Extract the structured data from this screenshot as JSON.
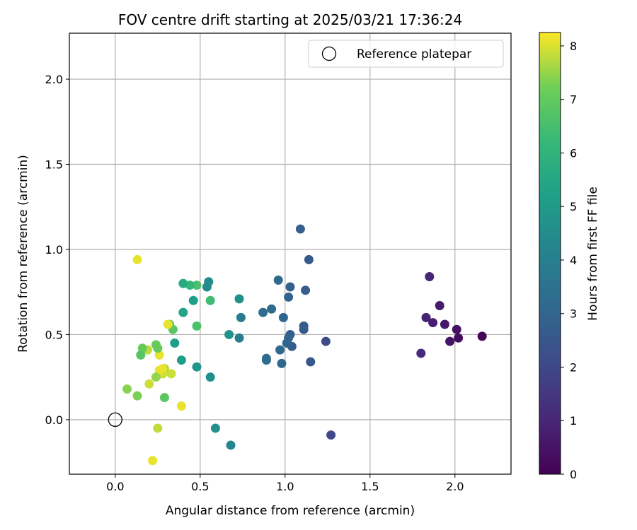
{
  "chart_data": {
    "type": "scatter",
    "title": "FOV centre drift starting at 2025/03/21 17:36:24",
    "xlabel": "Angular distance from reference (arcmin)",
    "ylabel": "Rotation from reference (arcmin)",
    "xlim": [
      -0.27,
      2.33
    ],
    "ylim": [
      -0.32,
      2.27
    ],
    "x_ticks": [
      0.0,
      0.5,
      1.0,
      1.5,
      2.0
    ],
    "x_tick_labels": [
      "0.0",
      "0.5",
      "1.0",
      "1.5",
      "2.0"
    ],
    "y_ticks": [
      0.0,
      0.5,
      1.0,
      1.5,
      2.0
    ],
    "y_tick_labels": [
      "0.0",
      "0.5",
      "1.0",
      "1.5",
      "2.0"
    ],
    "grid": true,
    "colormap": "viridis",
    "colorbar": {
      "label": "Hours from first FF file",
      "range": [
        0,
        8.25
      ],
      "ticks": [
        0,
        1,
        2,
        3,
        4,
        5,
        6,
        7,
        8
      ],
      "tick_labels": [
        "0",
        "1",
        "2",
        "3",
        "4",
        "5",
        "6",
        "7",
        "8"
      ]
    },
    "legend": {
      "placement": "top-right",
      "entries": [
        {
          "label": "Reference platepar",
          "marker": "open-circle"
        }
      ]
    },
    "reference_point": {
      "x": 0.0,
      "y": 0.0
    },
    "points": [
      {
        "x": 2.16,
        "y": 0.49,
        "c": 0.1
      },
      {
        "x": 2.02,
        "y": 0.48,
        "c": 0.3
      },
      {
        "x": 2.01,
        "y": 0.53,
        "c": 0.4
      },
      {
        "x": 1.97,
        "y": 0.46,
        "c": 0.5
      },
      {
        "x": 1.94,
        "y": 0.56,
        "c": 0.6
      },
      {
        "x": 1.91,
        "y": 0.67,
        "c": 0.7
      },
      {
        "x": 1.87,
        "y": 0.57,
        "c": 0.8
      },
      {
        "x": 1.83,
        "y": 0.6,
        "c": 0.9
      },
      {
        "x": 1.85,
        "y": 0.84,
        "c": 1.0
      },
      {
        "x": 1.8,
        "y": 0.39,
        "c": 1.1
      },
      {
        "x": 1.27,
        "y": -0.09,
        "c": 2.0
      },
      {
        "x": 1.24,
        "y": 0.46,
        "c": 2.1
      },
      {
        "x": 1.15,
        "y": 0.34,
        "c": 2.5
      },
      {
        "x": 1.14,
        "y": 0.94,
        "c": 2.6
      },
      {
        "x": 1.11,
        "y": 0.53,
        "c": 2.6
      },
      {
        "x": 1.11,
        "y": 0.55,
        "c": 2.7
      },
      {
        "x": 1.12,
        "y": 0.76,
        "c": 2.7
      },
      {
        "x": 1.09,
        "y": 1.12,
        "c": 2.8
      },
      {
        "x": 1.04,
        "y": 0.43,
        "c": 2.7
      },
      {
        "x": 1.03,
        "y": 0.5,
        "c": 2.8
      },
      {
        "x": 1.03,
        "y": 0.78,
        "c": 2.9
      },
      {
        "x": 1.02,
        "y": 0.72,
        "c": 2.9
      },
      {
        "x": 1.01,
        "y": 0.45,
        "c": 3.0
      },
      {
        "x": 1.02,
        "y": 0.48,
        "c": 3.0
      },
      {
        "x": 0.99,
        "y": 0.6,
        "c": 3.0
      },
      {
        "x": 0.98,
        "y": 0.33,
        "c": 3.1
      },
      {
        "x": 0.97,
        "y": 0.41,
        "c": 3.1
      },
      {
        "x": 0.96,
        "y": 0.82,
        "c": 3.2
      },
      {
        "x": 0.92,
        "y": 0.65,
        "c": 3.2
      },
      {
        "x": 0.89,
        "y": 0.36,
        "c": 3.3
      },
      {
        "x": 0.89,
        "y": 0.35,
        "c": 3.3
      },
      {
        "x": 0.87,
        "y": 0.63,
        "c": 3.3
      },
      {
        "x": 0.74,
        "y": 0.6,
        "c": 3.9
      },
      {
        "x": 0.73,
        "y": 0.48,
        "c": 3.9
      },
      {
        "x": 0.73,
        "y": 0.71,
        "c": 4.6
      },
      {
        "x": 0.68,
        "y": -0.15,
        "c": 4.3
      },
      {
        "x": 0.67,
        "y": 0.5,
        "c": 4.7
      },
      {
        "x": 0.59,
        "y": -0.05,
        "c": 4.6
      },
      {
        "x": 0.56,
        "y": 0.25,
        "c": 4.6
      },
      {
        "x": 0.56,
        "y": 0.7,
        "c": 6.4
      },
      {
        "x": 0.54,
        "y": 0.78,
        "c": 4.5
      },
      {
        "x": 0.55,
        "y": 0.81,
        "c": 4.5
      },
      {
        "x": 0.48,
        "y": 0.31,
        "c": 4.8
      },
      {
        "x": 0.48,
        "y": 0.55,
        "c": 6.6
      },
      {
        "x": 0.48,
        "y": 0.79,
        "c": 6.6
      },
      {
        "x": 0.46,
        "y": 0.7,
        "c": 5.2
      },
      {
        "x": 0.44,
        "y": 0.79,
        "c": 6.2
      },
      {
        "x": 0.4,
        "y": 0.8,
        "c": 5.7
      },
      {
        "x": 0.4,
        "y": 0.63,
        "c": 5.4
      },
      {
        "x": 0.39,
        "y": 0.35,
        "c": 5.2
      },
      {
        "x": 0.35,
        "y": 0.45,
        "c": 5.2
      },
      {
        "x": 0.34,
        "y": 0.53,
        "c": 6.9
      },
      {
        "x": 0.32,
        "y": 0.56,
        "c": 6.9
      },
      {
        "x": 0.31,
        "y": 0.56,
        "c": 8.1
      },
      {
        "x": 0.39,
        "y": 0.08,
        "c": 8.1
      },
      {
        "x": 0.33,
        "y": 0.27,
        "c": 7.9
      },
      {
        "x": 0.29,
        "y": 0.13,
        "c": 6.9
      },
      {
        "x": 0.29,
        "y": 0.3,
        "c": 7.6
      },
      {
        "x": 0.28,
        "y": 0.27,
        "c": 7.9
      },
      {
        "x": 0.28,
        "y": 0.3,
        "c": 8.1
      },
      {
        "x": 0.26,
        "y": 0.29,
        "c": 8.1
      },
      {
        "x": 0.26,
        "y": 0.38,
        "c": 8.1
      },
      {
        "x": 0.25,
        "y": -0.05,
        "c": 7.8
      },
      {
        "x": 0.24,
        "y": 0.25,
        "c": 7.5
      },
      {
        "x": 0.24,
        "y": 0.44,
        "c": 7.1
      },
      {
        "x": 0.25,
        "y": 0.42,
        "c": 7.1
      },
      {
        "x": 0.22,
        "y": -0.24,
        "c": 8.1
      },
      {
        "x": 0.2,
        "y": 0.21,
        "c": 7.9
      },
      {
        "x": 0.19,
        "y": 0.41,
        "c": 7.8
      },
      {
        "x": 0.16,
        "y": 0.42,
        "c": 7.1
      },
      {
        "x": 0.15,
        "y": 0.38,
        "c": 6.8
      },
      {
        "x": 0.13,
        "y": 0.94,
        "c": 8.1
      },
      {
        "x": 0.13,
        "y": 0.14,
        "c": 7.3
      },
      {
        "x": 0.07,
        "y": 0.18,
        "c": 7.4
      }
    ]
  }
}
